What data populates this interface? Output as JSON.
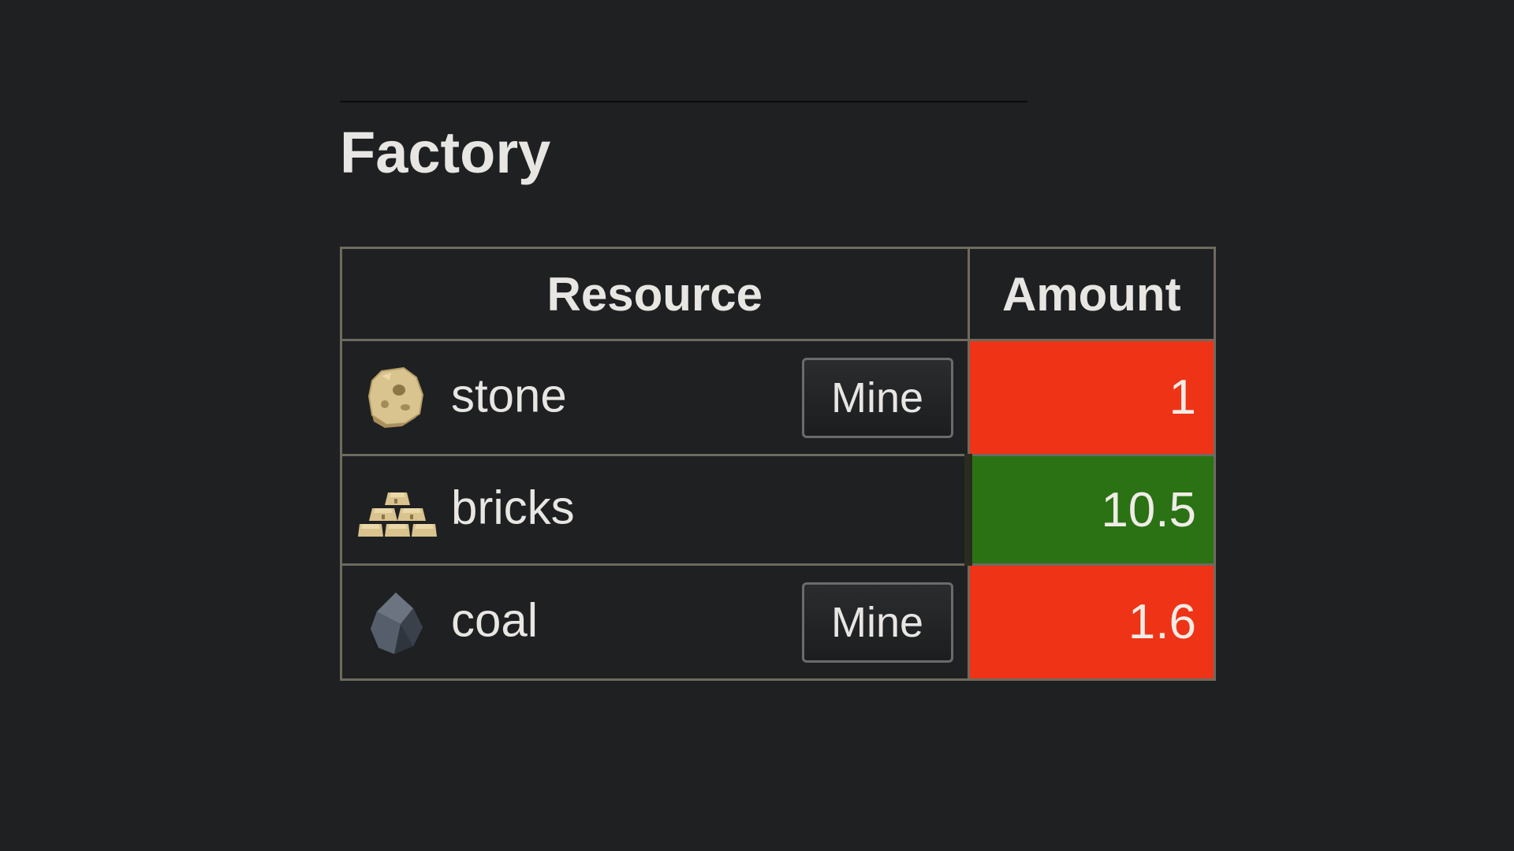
{
  "page": {
    "title": "Factory"
  },
  "table": {
    "headers": {
      "resource": "Resource",
      "amount": "Amount"
    },
    "rows": [
      {
        "icon": "stone-icon",
        "name": "stone",
        "action": "Mine",
        "amount": "1",
        "status": "deficit",
        "status_color": "#ef3316"
      },
      {
        "icon": "bricks-icon",
        "name": "bricks",
        "action": "",
        "amount": "10.5",
        "status": "surplus",
        "status_color": "#2a7214"
      },
      {
        "icon": "coal-icon",
        "name": "coal",
        "action": "Mine",
        "amount": "1.6",
        "status": "deficit",
        "status_color": "#ef3316"
      }
    ]
  }
}
